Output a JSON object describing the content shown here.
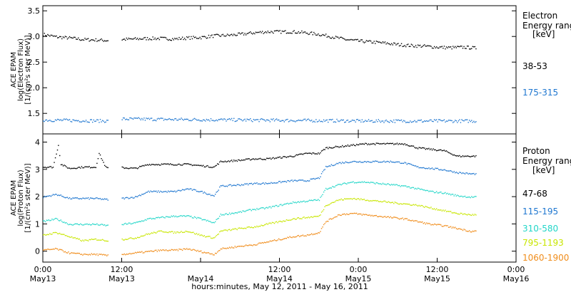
{
  "chart_data": [
    {
      "type": "scatter",
      "panel": "electron",
      "ylabel": [
        "ACE EPAM",
        "log(Electron Flux)",
        "[1/(cm²s ster MeV)]"
      ],
      "ylim": [
        1.1,
        3.6
      ],
      "yticks": [
        1.5,
        2.0,
        2.5,
        3.0,
        3.5
      ],
      "ytick_labels": [
        "1.5",
        "2.0",
        "2.5",
        "3.0",
        "3.5"
      ],
      "legend_title": [
        "Electron",
        "Energy ranges",
        "[keV]"
      ],
      "series": [
        {
          "name": "38-53",
          "color": "#000000",
          "points": [
            [
              0,
              3.05
            ],
            [
              2,
              3.0
            ],
            [
              4,
              2.98
            ],
            [
              6,
              2.95
            ],
            [
              8,
              2.94
            ],
            [
              10,
              2.93
            ],
            [
              12,
              2.95
            ],
            [
              14,
              2.96
            ],
            [
              16,
              2.97
            ],
            [
              18,
              2.97
            ],
            [
              20,
              2.96
            ],
            [
              22,
              2.98
            ],
            [
              24,
              2.99
            ],
            [
              26,
              3.02
            ],
            [
              28,
              3.03
            ],
            [
              30,
              3.05
            ],
            [
              32,
              3.08
            ],
            [
              34,
              3.1
            ],
            [
              36,
              3.1
            ],
            [
              38,
              3.1
            ],
            [
              40,
              3.08
            ],
            [
              42,
              3.05
            ],
            [
              44,
              3.0
            ],
            [
              46,
              2.95
            ],
            [
              48,
              2.92
            ],
            [
              50,
              2.9
            ],
            [
              52,
              2.88
            ],
            [
              54,
              2.85
            ],
            [
              56,
              2.83
            ],
            [
              58,
              2.82
            ],
            [
              60,
              2.8
            ],
            [
              62,
              2.79
            ],
            [
              64,
              2.8
            ],
            [
              66,
              2.78
            ]
          ]
        },
        {
          "name": "175-315",
          "color": "#1f77d0",
          "points": [
            [
              0,
              1.38
            ],
            [
              10,
              1.36
            ],
            [
              12,
              1.4
            ],
            [
              30,
              1.38
            ],
            [
              50,
              1.36
            ],
            [
              66,
              1.36
            ]
          ]
        }
      ]
    },
    {
      "type": "scatter",
      "panel": "proton",
      "ylabel": [
        "ACE EPAM",
        "log(Proton Flux)",
        "[1/(cm²s ster MeV)]"
      ],
      "ylim": [
        -0.4,
        4.3
      ],
      "yticks": [
        0,
        1,
        2,
        3,
        4
      ],
      "ytick_labels": [
        "0",
        "1",
        "2",
        "3",
        "4"
      ],
      "legend_title": [
        "Proton",
        "Energy ranges",
        "[keV]"
      ],
      "series": [
        {
          "name": "47-68",
          "color": "#000000",
          "points": [
            [
              0,
              3.1
            ],
            [
              1.5,
              3.1
            ],
            [
              2,
              3.6
            ],
            [
              2.3,
              3.9
            ],
            [
              2.7,
              3.2
            ],
            [
              4,
              3.05
            ],
            [
              6,
              3.1
            ],
            [
              8,
              3.1
            ],
            [
              8.5,
              3.6
            ],
            [
              9.5,
              3.1
            ],
            [
              10,
              3.05
            ],
            [
              12,
              3.08
            ],
            [
              14,
              3.05
            ],
            [
              16,
              3.2
            ],
            [
              18,
              3.2
            ],
            [
              20,
              3.2
            ],
            [
              22,
              3.2
            ],
            [
              24,
              3.15
            ],
            [
              26,
              3.1
            ],
            [
              27,
              3.3
            ],
            [
              30,
              3.35
            ],
            [
              32,
              3.4
            ],
            [
              34,
              3.4
            ],
            [
              36,
              3.45
            ],
            [
              38,
              3.5
            ],
            [
              40,
              3.6
            ],
            [
              42,
              3.6
            ],
            [
              43,
              3.8
            ],
            [
              45,
              3.85
            ],
            [
              47,
              3.9
            ],
            [
              49,
              3.95
            ],
            [
              51,
              3.95
            ],
            [
              53,
              3.95
            ],
            [
              55,
              3.95
            ],
            [
              57,
              3.8
            ],
            [
              59,
              3.75
            ],
            [
              61,
              3.7
            ],
            [
              63,
              3.5
            ],
            [
              65,
              3.5
            ],
            [
              66,
              3.5
            ]
          ]
        },
        {
          "name": "115-195",
          "color": "#1f77d0",
          "points": [
            [
              0,
              2.0
            ],
            [
              2,
              2.1
            ],
            [
              4,
              1.95
            ],
            [
              6,
              1.95
            ],
            [
              8,
              1.95
            ],
            [
              10,
              1.9
            ],
            [
              12,
              1.95
            ],
            [
              14,
              2.0
            ],
            [
              16,
              2.2
            ],
            [
              18,
              2.2
            ],
            [
              20,
              2.2
            ],
            [
              22,
              2.3
            ],
            [
              24,
              2.2
            ],
            [
              26,
              2.05
            ],
            [
              27,
              2.4
            ],
            [
              30,
              2.45
            ],
            [
              32,
              2.5
            ],
            [
              34,
              2.5
            ],
            [
              36,
              2.55
            ],
            [
              38,
              2.6
            ],
            [
              40,
              2.6
            ],
            [
              42,
              2.7
            ],
            [
              43,
              3.1
            ],
            [
              45,
              3.25
            ],
            [
              47,
              3.3
            ],
            [
              49,
              3.3
            ],
            [
              51,
              3.3
            ],
            [
              53,
              3.3
            ],
            [
              55,
              3.25
            ],
            [
              57,
              3.1
            ],
            [
              59,
              3.05
            ],
            [
              61,
              3.0
            ],
            [
              63,
              2.9
            ],
            [
              65,
              2.85
            ],
            [
              66,
              2.85
            ]
          ]
        },
        {
          "name": "310-580",
          "color": "#22d6c8",
          "points": [
            [
              0,
              1.1
            ],
            [
              2,
              1.2
            ],
            [
              4,
              1.0
            ],
            [
              6,
              1.0
            ],
            [
              8,
              1.0
            ],
            [
              10,
              0.95
            ],
            [
              12,
              1.0
            ],
            [
              14,
              1.05
            ],
            [
              16,
              1.2
            ],
            [
              18,
              1.25
            ],
            [
              20,
              1.3
            ],
            [
              22,
              1.3
            ],
            [
              24,
              1.2
            ],
            [
              26,
              1.05
            ],
            [
              27,
              1.35
            ],
            [
              30,
              1.45
            ],
            [
              32,
              1.55
            ],
            [
              34,
              1.6
            ],
            [
              36,
              1.7
            ],
            [
              38,
              1.8
            ],
            [
              40,
              1.85
            ],
            [
              42,
              1.9
            ],
            [
              43,
              2.3
            ],
            [
              45,
              2.45
            ],
            [
              47,
              2.55
            ],
            [
              49,
              2.55
            ],
            [
              51,
              2.5
            ],
            [
              53,
              2.45
            ],
            [
              55,
              2.4
            ],
            [
              57,
              2.3
            ],
            [
              59,
              2.2
            ],
            [
              61,
              2.15
            ],
            [
              63,
              2.05
            ],
            [
              65,
              2.0
            ],
            [
              66,
              2.0
            ]
          ]
        },
        {
          "name": "795-1193",
          "color": "#c8e600",
          "points": [
            [
              0,
              0.6
            ],
            [
              2,
              0.7
            ],
            [
              4,
              0.55
            ],
            [
              6,
              0.4
            ],
            [
              8,
              0.45
            ],
            [
              10,
              0.4
            ],
            [
              12,
              0.45
            ],
            [
              14,
              0.5
            ],
            [
              16,
              0.65
            ],
            [
              18,
              0.75
            ],
            [
              20,
              0.7
            ],
            [
              22,
              0.75
            ],
            [
              24,
              0.6
            ],
            [
              26,
              0.5
            ],
            [
              27,
              0.75
            ],
            [
              30,
              0.85
            ],
            [
              32,
              0.9
            ],
            [
              34,
              1.0
            ],
            [
              36,
              1.1
            ],
            [
              38,
              1.2
            ],
            [
              40,
              1.25
            ],
            [
              42,
              1.3
            ],
            [
              43,
              1.7
            ],
            [
              45,
              1.9
            ],
            [
              47,
              1.95
            ],
            [
              49,
              1.9
            ],
            [
              51,
              1.85
            ],
            [
              53,
              1.8
            ],
            [
              55,
              1.75
            ],
            [
              57,
              1.7
            ],
            [
              59,
              1.6
            ],
            [
              61,
              1.5
            ],
            [
              63,
              1.4
            ],
            [
              65,
              1.35
            ],
            [
              66,
              1.35
            ]
          ]
        },
        {
          "name": "1060-1900",
          "color": "#f08c1a",
          "points": [
            [
              0,
              0.05
            ],
            [
              2,
              0.1
            ],
            [
              4,
              -0.05
            ],
            [
              6,
              -0.1
            ],
            [
              8,
              -0.1
            ],
            [
              10,
              -0.15
            ],
            [
              12,
              -0.1
            ],
            [
              14,
              -0.05
            ],
            [
              16,
              0.0
            ],
            [
              18,
              0.05
            ],
            [
              20,
              0.05
            ],
            [
              22,
              0.1
            ],
            [
              24,
              0.0
            ],
            [
              26,
              -0.1
            ],
            [
              27,
              0.1
            ],
            [
              30,
              0.2
            ],
            [
              32,
              0.25
            ],
            [
              34,
              0.35
            ],
            [
              36,
              0.45
            ],
            [
              38,
              0.55
            ],
            [
              40,
              0.6
            ],
            [
              42,
              0.7
            ],
            [
              43,
              1.1
            ],
            [
              45,
              1.35
            ],
            [
              47,
              1.4
            ],
            [
              49,
              1.35
            ],
            [
              51,
              1.3
            ],
            [
              53,
              1.25
            ],
            [
              55,
              1.2
            ],
            [
              57,
              1.1
            ],
            [
              59,
              1.0
            ],
            [
              61,
              0.95
            ],
            [
              63,
              0.85
            ],
            [
              65,
              0.75
            ],
            [
              66,
              0.75
            ]
          ]
        }
      ]
    }
  ],
  "x_axis": {
    "range_hours": [
      0,
      72
    ],
    "ticks": [
      {
        "h": 0,
        "time": "0:00",
        "date": "May13"
      },
      {
        "h": 12,
        "time": "12:00",
        "date": "May13"
      },
      {
        "h": 24,
        "time": "",
        "date": "May14"
      },
      {
        "h": 36,
        "time": "12:00",
        "date": "May14"
      },
      {
        "h": 48,
        "time": "0:00",
        "date": "May15"
      },
      {
        "h": 60,
        "time": "12:00",
        "date": "May15"
      },
      {
        "h": 72,
        "time": "0:00",
        "date": "May16"
      }
    ],
    "label": "hours:minutes, May 12, 2011 - May 16, 2011"
  }
}
